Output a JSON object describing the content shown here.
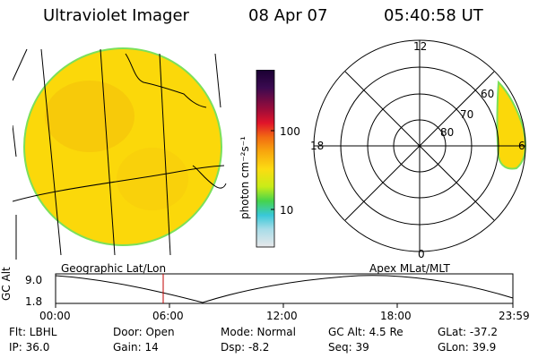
{
  "header": {
    "instrument": "Ultraviolet Imager",
    "date": "08 Apr 07",
    "time": "05:40:58 UT"
  },
  "left_panel": {
    "label": "Geographic Lat/Lon"
  },
  "colorbar": {
    "unit_label": "photon cm⁻²s⁻¹",
    "tick_labels": [
      "100",
      "10"
    ],
    "scale": "log"
  },
  "polar_panel": {
    "label": "Apex  MLat/MLT",
    "mlt_labels": {
      "top": "12",
      "bottom": "0",
      "left": "18",
      "right": "6"
    },
    "lat_labels": [
      "60",
      "70",
      "80"
    ]
  },
  "timeline": {
    "ylabel": "GC Alt",
    "y_ticks": [
      "9.0",
      "1.8"
    ],
    "x_ticks": [
      "00:00",
      "06:00",
      "12:00",
      "18:00",
      "23:59"
    ],
    "current_marker": "05:40"
  },
  "status": {
    "row1": [
      {
        "name": "filter",
        "text": "Flt: LBHL"
      },
      {
        "name": "door",
        "text": "Door: Open"
      },
      {
        "name": "mode",
        "text": "Mode: Normal"
      },
      {
        "name": "gc-alt",
        "text": "GC Alt: 4.5 Re"
      },
      {
        "name": "glat",
        "text": "GLat:  -37.2"
      }
    ],
    "row2": [
      {
        "name": "ip",
        "text": "IP: 36.0"
      },
      {
        "name": "gain",
        "text": "Gain: 14"
      },
      {
        "name": "dsp",
        "text": "Dsp:    -8.2"
      },
      {
        "name": "seq",
        "text": "Seq: 39"
      },
      {
        "name": "glon",
        "text": "GLon:  39.9"
      }
    ]
  },
  "colors": {
    "emission_fill": "#fbd80a",
    "emission_edge": "#7be05a",
    "background": "#ffffff"
  }
}
